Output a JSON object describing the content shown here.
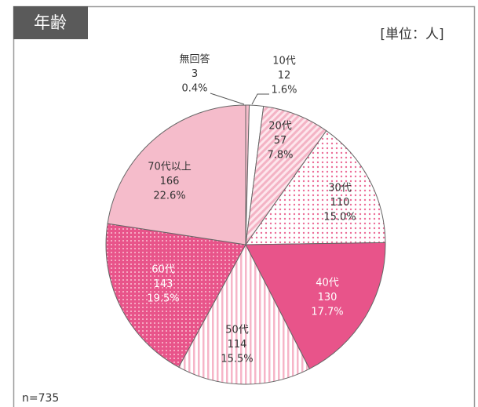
{
  "chart_data": {
    "type": "pie",
    "title": "年齢",
    "unit_label": "[単位：人]",
    "note": "n=735",
    "categories": [
      "無回答",
      "10代",
      "20代",
      "30代",
      "40代",
      "50代",
      "60代",
      "70代以上"
    ],
    "values": [
      3,
      12,
      57,
      110,
      130,
      114,
      143,
      166
    ],
    "percent_labels": [
      "0.4%",
      "1.6%",
      "7.8%",
      "15.0%",
      "17.7%",
      "15.5%",
      "19.5%",
      "22.6%"
    ],
    "colors": [
      "#f5bccb",
      "#ffffff",
      "#fbdbe4",
      "#ffffff",
      "#e8548a",
      "#ffffff",
      "#e8548a",
      "#f5bccb"
    ],
    "patterns": [
      "solid",
      "solid",
      "diagonal",
      "dots",
      "solid",
      "vertical",
      "grid",
      "solid"
    ]
  }
}
